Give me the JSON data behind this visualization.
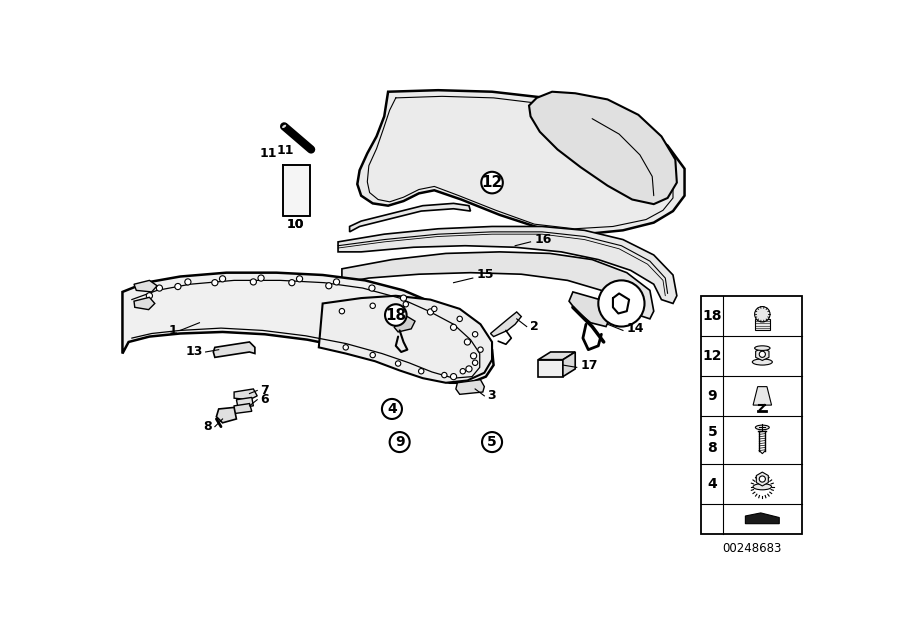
{
  "part_number": "00248683",
  "background_color": "#ffffff",
  "line_color": "#000000",
  "figsize": [
    9.0,
    6.36
  ],
  "dpi": 100
}
